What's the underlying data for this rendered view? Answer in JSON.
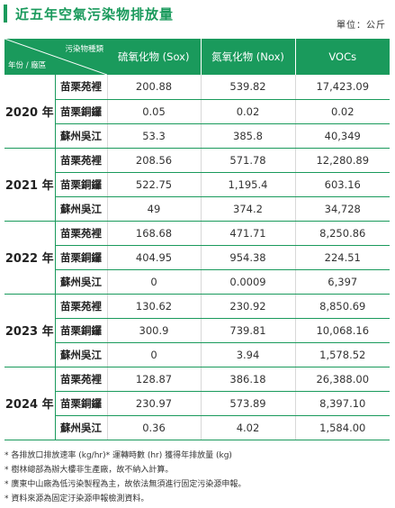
{
  "title": "近五年空氣污染物排放量",
  "unit": "單位：公斤",
  "header": {
    "corner_top": "污染物種類",
    "corner_bottom": "年份 / 廠區",
    "columns": [
      "硫氧化物 (Sox)",
      "氮氧化物 (Nox)",
      "VOCs"
    ]
  },
  "colors": {
    "accent": "#1a9a5c"
  },
  "years": [
    {
      "year": "2020 年",
      "rows": [
        {
          "plant": "苗栗苑裡",
          "sox": "200.88",
          "nox": "539.82",
          "voc": "17,423.09"
        },
        {
          "plant": "苗栗銅鑼",
          "sox": "0.05",
          "nox": "0.02",
          "voc": "0.02"
        },
        {
          "plant": "蘇州吳江",
          "sox": "53.3",
          "nox": "385.8",
          "voc": "40,349"
        }
      ]
    },
    {
      "year": "2021 年",
      "rows": [
        {
          "plant": "苗栗苑裡",
          "sox": "208.56",
          "nox": "571.78",
          "voc": "12,280.89"
        },
        {
          "plant": "苗栗銅鑼",
          "sox": "522.75",
          "nox": "1,195.4",
          "voc": "603.16"
        },
        {
          "plant": "蘇州吳江",
          "sox": "49",
          "nox": "374.2",
          "voc": "34,728"
        }
      ]
    },
    {
      "year": "2022 年",
      "rows": [
        {
          "plant": "苗栗苑裡",
          "sox": "168.68",
          "nox": "471.71",
          "voc": "8,250.86"
        },
        {
          "plant": "苗栗銅鑼",
          "sox": "404.95",
          "nox": "954.38",
          "voc": "224.51"
        },
        {
          "plant": "蘇州吳江",
          "sox": "0",
          "nox": "0.0009",
          "voc": "6,397"
        }
      ]
    },
    {
      "year": "2023 年",
      "rows": [
        {
          "plant": "苗栗苑裡",
          "sox": "130.62",
          "nox": "230.92",
          "voc": "8,850.69"
        },
        {
          "plant": "苗栗銅鑼",
          "sox": "300.9",
          "nox": "739.81",
          "voc": "10,068.16"
        },
        {
          "plant": "蘇州吳江",
          "sox": "0",
          "nox": "3.94",
          "voc": "1,578.52"
        }
      ]
    },
    {
      "year": "2024 年",
      "rows": [
        {
          "plant": "苗栗苑裡",
          "sox": "128.87",
          "nox": "386.18",
          "voc": "26,388.00"
        },
        {
          "plant": "苗栗銅鑼",
          "sox": "230.97",
          "nox": "573.89",
          "voc": "8,397.10"
        },
        {
          "plant": "蘇州吳江",
          "sox": "0.36",
          "nox": "4.02",
          "voc": "1,584.00"
        }
      ]
    }
  ],
  "notes": [
    "* 各排放口排放速率 (kg/hr)* 運轉時數 (hr) 獲得年排放量 (kg)",
    "* 樹林總部為辦大樓非生產廠，故不納入計算。",
    "* 廣東中山廠為低污染製程為主，故依法無須進行固定污染源申報。",
    "* 資料來源為固定汙染源申報檢測資料。"
  ]
}
